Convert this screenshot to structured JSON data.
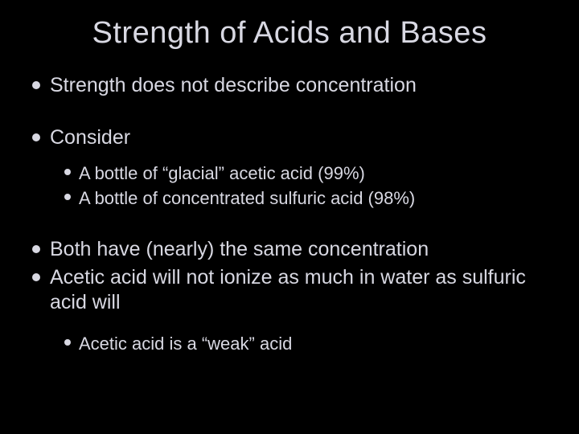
{
  "slide": {
    "title": "Strength of Acids and Bases",
    "background_color": "#000000",
    "text_color": "#d8d8e2",
    "title_fontsize": 38,
    "body_fontsize_l1": 25,
    "body_fontsize_l2": 22,
    "bullets": [
      {
        "level": 1,
        "text": "Strength does not describe concentration",
        "gap_after": "large"
      },
      {
        "level": 1,
        "text": "Consider",
        "gap_after": "small"
      },
      {
        "level": 2,
        "text": "A bottle of “glacial” acetic acid (99%)",
        "gap_after": "none"
      },
      {
        "level": 2,
        "text": "A bottle of concentrated sulfuric acid (98%)",
        "gap_after": "large"
      },
      {
        "level": 1,
        "text": "Both have (nearly) the same concentration",
        "gap_after": "none"
      },
      {
        "level": 1,
        "text": "Acetic acid will not ionize as much in water as sulfuric acid will",
        "gap_after": "medium"
      },
      {
        "level": 2,
        "text": "Acetic acid is a “weak” acid",
        "gap_after": "none"
      }
    ]
  }
}
